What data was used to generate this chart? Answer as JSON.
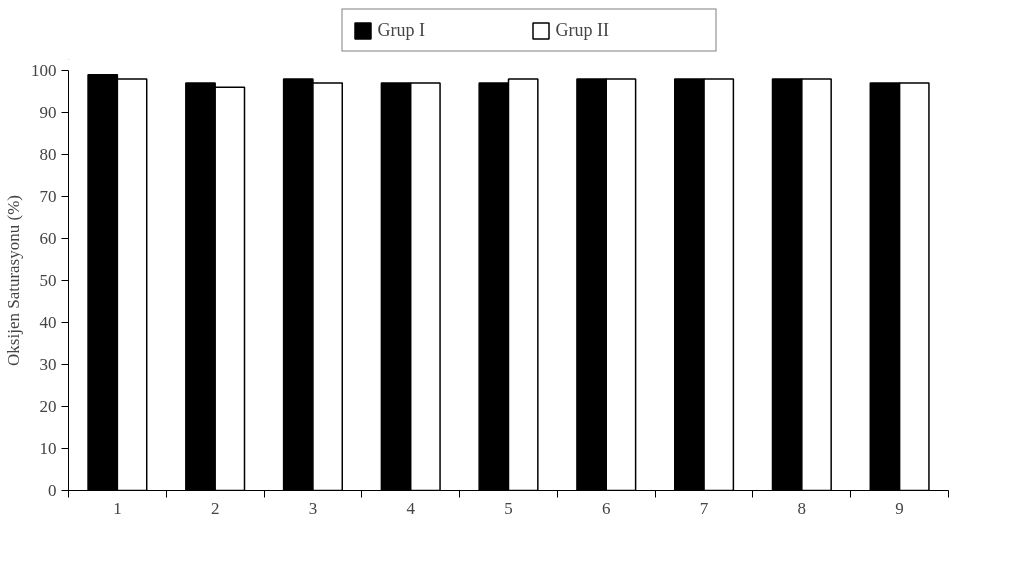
{
  "chart_data": {
    "type": "bar",
    "ylabel": "Oksijen Saturasyonu (%)",
    "categories": [
      "1",
      "2",
      "3",
      "4",
      "5",
      "6",
      "7",
      "8",
      "9"
    ],
    "series": [
      {
        "name": "Grup I",
        "color": "#000000",
        "values": [
          99,
          97,
          98,
          97,
          97,
          98,
          98,
          98,
          97
        ]
      },
      {
        "name": "Grup II",
        "color": "#ffffff",
        "values": [
          98,
          96,
          97,
          97,
          98,
          98,
          98,
          98,
          97
        ]
      }
    ],
    "ylim": [
      0,
      100
    ],
    "yticks": [
      0,
      10,
      20,
      30,
      40,
      50,
      60,
      70,
      80,
      90,
      100
    ],
    "grid": false,
    "legend": "top"
  }
}
